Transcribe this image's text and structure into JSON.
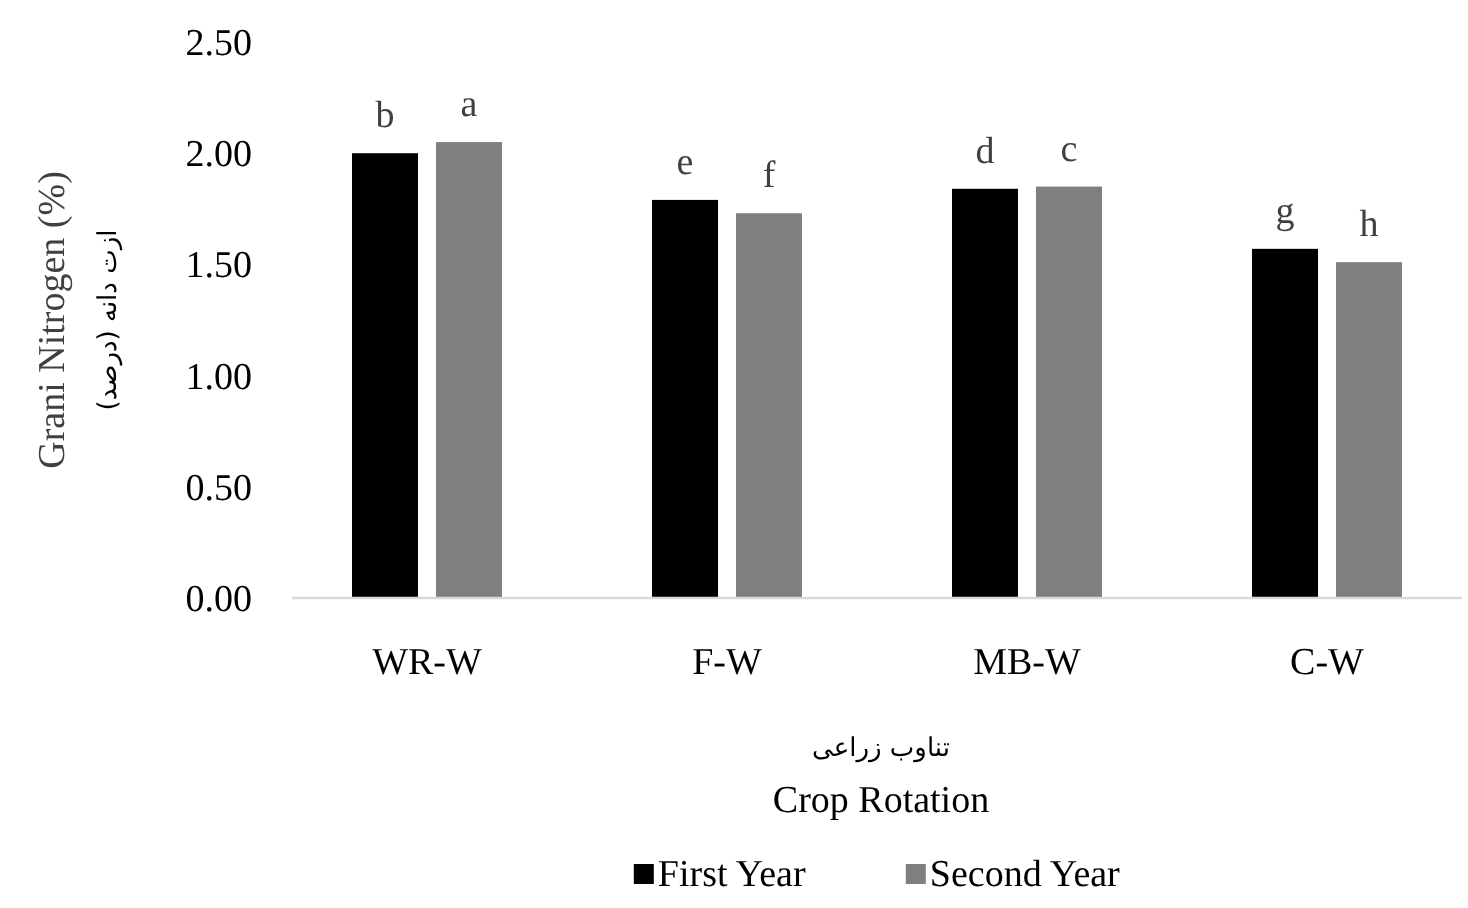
{
  "chart_data": {
    "type": "bar",
    "ylabel": "Grani Nitrogen (%)",
    "xlabel": "Crop Rotation",
    "categories": [
      "WR-W",
      "F-W",
      "MB-W",
      "C-W"
    ],
    "series": [
      {
        "name": "First Year",
        "color": "#000000",
        "values": [
          2.0,
          1.79,
          1.84,
          1.57
        ]
      },
      {
        "name": "Second Year",
        "color": "#7f7f7f",
        "values": [
          2.05,
          1.73,
          1.85,
          1.51
        ]
      }
    ],
    "ylim": [
      0,
      2.5
    ],
    "yticks": [
      {
        "value": 0,
        "label": "0.00"
      },
      {
        "value": 0.5,
        "label": "0.50"
      },
      {
        "value": 1,
        "label": "1.00"
      },
      {
        "value": 1.5,
        "label": "1.50"
      },
      {
        "value": 2,
        "label": "2.00"
      },
      {
        "value": 2.5,
        "label": "2.50"
      }
    ],
    "legend": "bottom",
    "annotations": [
      {
        "text": "b",
        "x": "WR-W",
        "y": 2.0
      },
      {
        "text": "a",
        "x": "WR-W",
        "y": 2.05
      },
      {
        "text": "e",
        "x": "F-W",
        "y": 1.79
      },
      {
        "text": "f",
        "x": "F-W",
        "y": 1.73
      },
      {
        "text": "d",
        "x": "MB-W",
        "y": 1.84
      },
      {
        "text": "c",
        "x": "MB-W",
        "y": 1.85
      },
      {
        "text": "g",
        "x": "C-W",
        "y": 1.57
      },
      {
        "text": "h",
        "x": "C-W",
        "y": 1.51
      },
      "ازت دانه (درصد)",
      "تناوب زراعی"
    ]
  }
}
